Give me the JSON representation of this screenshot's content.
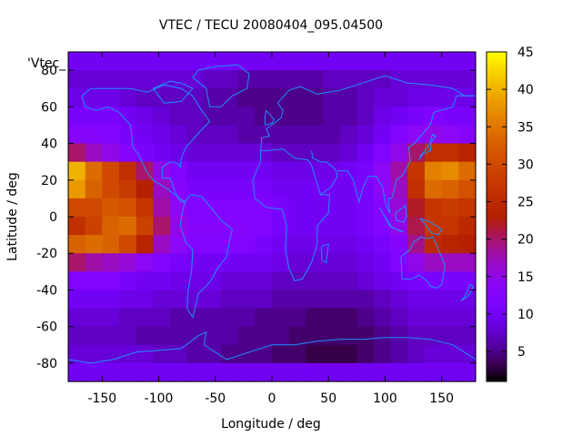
{
  "chart_data": {
    "type": "heatmap",
    "title": "VTEC / TECU 20080404_095.04500",
    "xlabel": "Longitude / deg",
    "ylabel": "Latitude / deg",
    "key_label": "'Vtec_",
    "xlim": [
      -180,
      180
    ],
    "ylim": [
      -90,
      90
    ],
    "x_ticks": [
      -150,
      -100,
      -50,
      0,
      50,
      100,
      150
    ],
    "y_ticks": [
      -80,
      -60,
      -40,
      -20,
      0,
      20,
      40,
      60,
      80
    ],
    "colorbar": {
      "min": 1,
      "max": 45,
      "ticks": [
        5,
        10,
        15,
        20,
        25,
        30,
        35,
        40,
        45
      ],
      "palette": "gnuplot-hot"
    },
    "lon_step": 15,
    "lat_step": 10,
    "lon_centers": [
      -172.5,
      -157.5,
      -142.5,
      -127.5,
      -112.5,
      -97.5,
      -82.5,
      -67.5,
      -52.5,
      -37.5,
      -22.5,
      -7.5,
      7.5,
      22.5,
      37.5,
      52.5,
      67.5,
      82.5,
      97.5,
      112.5,
      127.5,
      142.5,
      157.5,
      172.5
    ],
    "lat_centers": [
      85,
      75,
      65,
      55,
      45,
      35,
      25,
      15,
      5,
      -5,
      -15,
      -25,
      -35,
      -45,
      -55,
      -65,
      -75,
      -85
    ],
    "vtec_grid": [
      [
        10,
        10,
        10,
        10,
        10,
        10,
        10,
        10,
        10,
        10,
        10,
        10,
        10,
        10,
        10,
        10,
        10,
        10,
        10,
        10,
        10,
        10,
        10,
        10
      ],
      [
        8,
        8,
        8,
        8,
        8,
        8,
        8,
        8,
        7,
        7,
        6,
        6,
        6,
        6,
        6,
        7,
        7,
        7,
        7,
        8,
        8,
        8,
        8,
        8
      ],
      [
        9,
        9,
        9,
        8,
        7,
        7,
        7,
        7,
        6,
        6,
        5,
        5,
        5,
        5,
        5,
        6,
        6,
        7,
        8,
        8,
        9,
        9,
        9,
        9
      ],
      [
        11,
        11,
        11,
        10,
        9,
        8,
        7,
        7,
        6,
        6,
        6,
        5,
        5,
        5,
        5,
        6,
        6,
        7,
        9,
        10,
        11,
        12,
        11,
        11
      ],
      [
        13,
        13,
        12,
        11,
        10,
        9,
        8,
        7,
        7,
        7,
        6,
        6,
        6,
        6,
        6,
        6,
        7,
        8,
        10,
        12,
        14,
        15,
        14,
        13
      ],
      [
        20,
        17,
        15,
        13,
        11,
        10,
        9,
        8,
        8,
        8,
        8,
        8,
        7,
        7,
        7,
        7,
        8,
        10,
        12,
        15,
        20,
        26,
        26,
        24
      ],
      [
        40,
        34,
        30,
        26,
        20,
        15,
        12,
        10,
        10,
        10,
        10,
        10,
        9,
        9,
        9,
        9,
        10,
        11,
        14,
        18,
        27,
        36,
        37,
        34
      ],
      [
        38,
        33,
        30,
        28,
        23,
        17,
        13,
        11,
        11,
        11,
        11,
        11,
        10,
        10,
        10,
        10,
        10,
        11,
        14,
        17,
        26,
        34,
        33,
        31
      ],
      [
        30,
        30,
        32,
        31,
        27,
        18,
        14,
        12,
        12,
        12,
        12,
        12,
        11,
        10,
        10,
        10,
        10,
        11,
        13,
        16,
        22,
        27,
        28,
        27
      ],
      [
        26,
        29,
        33,
        34,
        29,
        20,
        15,
        13,
        13,
        13,
        13,
        12,
        11,
        10,
        10,
        10,
        10,
        11,
        12,
        15,
        21,
        27,
        27,
        25
      ],
      [
        33,
        34,
        33,
        30,
        24,
        17,
        14,
        12,
        12,
        12,
        12,
        11,
        10,
        9,
        9,
        9,
        9,
        10,
        11,
        13,
        19,
        25,
        24,
        23
      ],
      [
        20,
        18,
        17,
        16,
        14,
        12,
        11,
        10,
        10,
        10,
        10,
        10,
        9,
        8,
        8,
        8,
        8,
        9,
        10,
        12,
        15,
        17,
        17,
        17
      ],
      [
        12,
        12,
        12,
        11,
        10,
        10,
        9,
        9,
        9,
        8,
        8,
        8,
        7,
        7,
        7,
        7,
        7,
        8,
        9,
        10,
        11,
        11,
        11,
        11
      ],
      [
        10,
        10,
        10,
        9,
        9,
        8,
        8,
        8,
        8,
        7,
        7,
        7,
        6,
        6,
        6,
        6,
        6,
        6,
        7,
        8,
        9,
        9,
        9,
        9
      ],
      [
        8,
        8,
        8,
        7,
        7,
        7,
        6,
        6,
        6,
        6,
        6,
        5,
        5,
        5,
        4,
        4,
        4,
        5,
        6,
        7,
        8,
        8,
        8,
        8
      ],
      [
        7,
        7,
        7,
        7,
        6,
        6,
        6,
        6,
        6,
        6,
        5,
        5,
        5,
        4,
        4,
        4,
        4,
        4,
        5,
        6,
        7,
        7,
        7,
        7
      ],
      [
        8,
        8,
        8,
        8,
        8,
        7,
        7,
        6,
        6,
        5,
        5,
        5,
        4,
        4,
        3,
        3,
        3,
        4,
        5,
        6,
        7,
        8,
        8,
        8
      ],
      [
        10,
        10,
        10,
        10,
        10,
        10,
        10,
        10,
        10,
        10,
        10,
        10,
        10,
        10,
        10,
        10,
        10,
        10,
        10,
        10,
        10,
        10,
        10,
        10
      ]
    ]
  }
}
